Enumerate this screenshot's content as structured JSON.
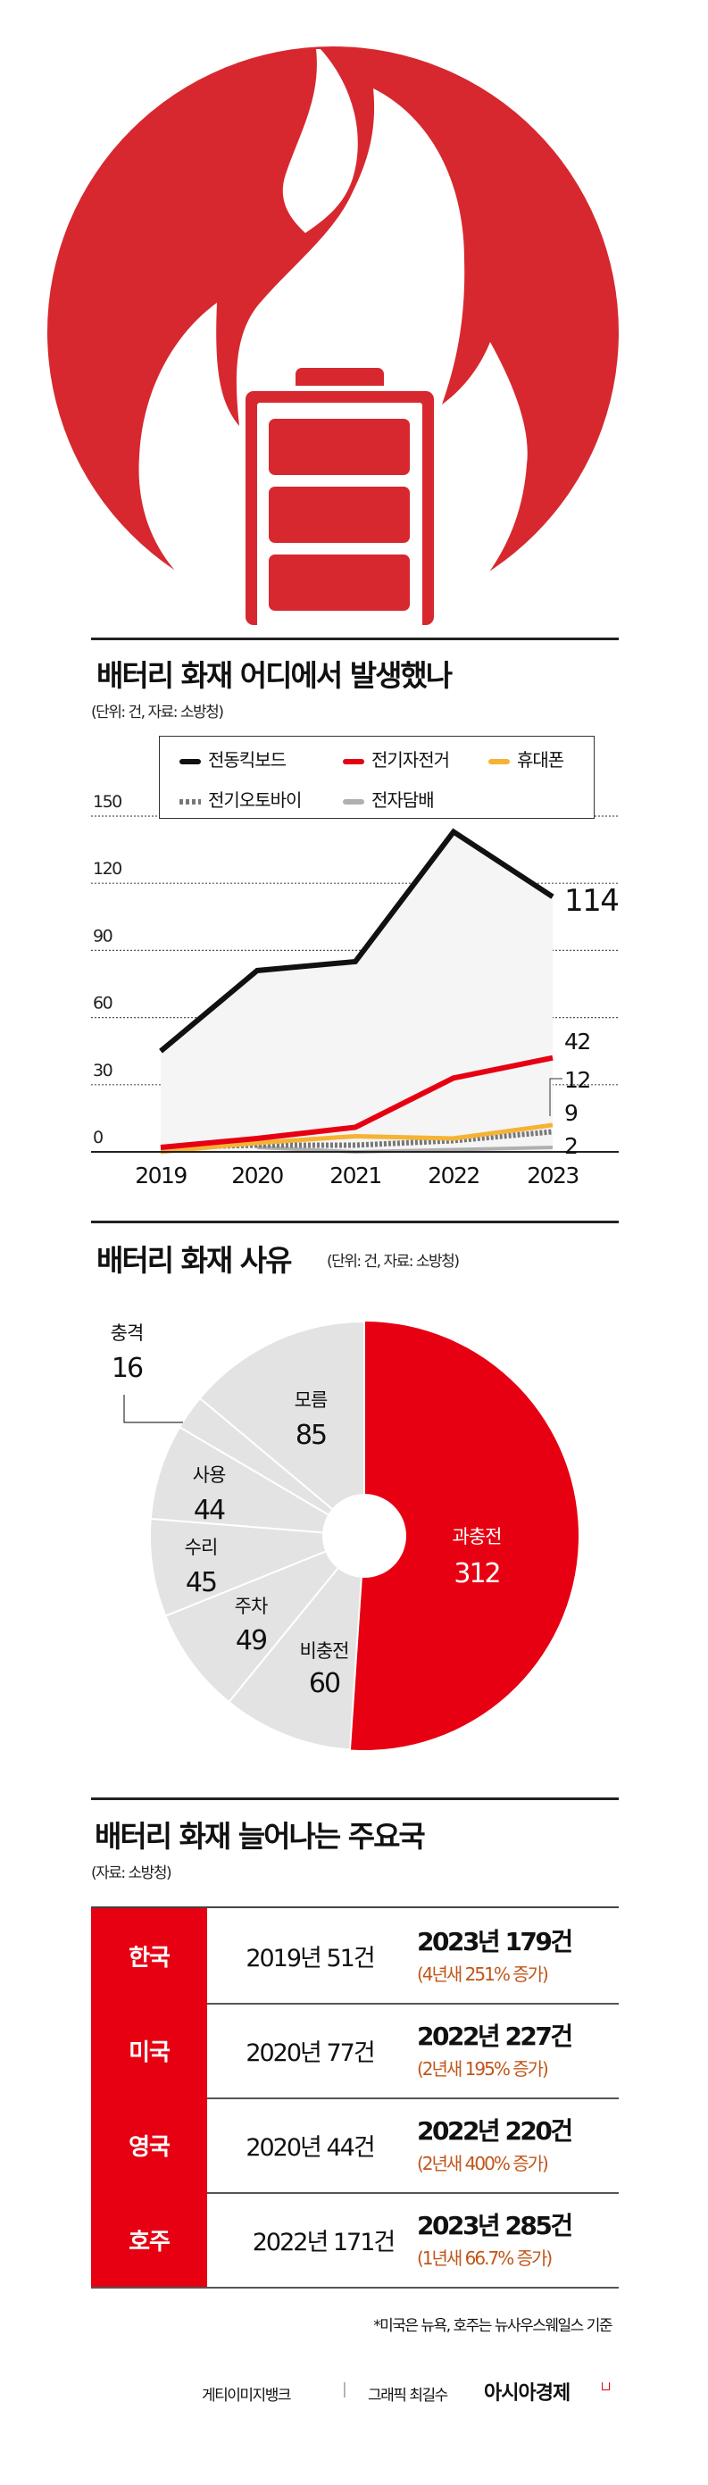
{
  "colors": {
    "red": "#d7282f",
    "accent": "#e60012",
    "orange": "#c0561a",
    "black": "#111111",
    "yellow": "#f5b335",
    "gray_dots": "#777777",
    "gray": "#b0b0b0",
    "area": "#f5f5f5"
  },
  "hero": {
    "icon": "battery-fire-icon"
  },
  "line_section": {
    "title": "배터리 화재 어디에서 발생했나",
    "subtitle": "(단위: 건, 자료: 소방청)"
  },
  "chart_data": [
    {
      "type": "line",
      "title": "배터리 화재 어디에서 발생했나",
      "x": [
        "2019",
        "2020",
        "2021",
        "2022",
        "2023"
      ],
      "ylim": [
        0,
        150
      ],
      "yticks": [
        "0",
        "30",
        "60",
        "90",
        "120",
        "150"
      ],
      "grid": true,
      "legend": "top",
      "series": [
        {
          "name": "전동킥보드",
          "values": [
            45,
            81,
            85,
            143,
            114
          ],
          "color": "#111111",
          "style": "solid",
          "area": true,
          "end_label": "114"
        },
        {
          "name": "전기자전거",
          "values": [
            2,
            6,
            11,
            33,
            42
          ],
          "color": "#e60012",
          "style": "solid",
          "end_label": "42"
        },
        {
          "name": "휴대폰",
          "values": [
            0,
            4,
            7,
            6,
            12
          ],
          "color": "#f5b335",
          "style": "solid",
          "end_label": "12"
        },
        {
          "name": "전기오토바이",
          "values": [
            2,
            3,
            3,
            5,
            9
          ],
          "color": "#777777",
          "style": "dotted",
          "end_label": "9"
        },
        {
          "name": "전자담배",
          "values": [
            null,
            2,
            0,
            1,
            2
          ],
          "color": "#b0b0b0",
          "style": "solid",
          "end_label": "2"
        }
      ]
    },
    {
      "type": "pie",
      "title": "배터리 화재 사유",
      "slices": [
        {
          "label": "과충전",
          "value": 312,
          "color": "#e60012"
        },
        {
          "label": "비충전",
          "value": 60,
          "color": "#e3e3e3"
        },
        {
          "label": "주차",
          "value": 49,
          "color": "#e3e3e3"
        },
        {
          "label": "수리",
          "value": 45,
          "color": "#e3e3e3"
        },
        {
          "label": "사용",
          "value": 44,
          "color": "#e3e3e3"
        },
        {
          "label": "충격",
          "value": 16,
          "color": "#e3e3e3"
        },
        {
          "label": "모름",
          "value": 85,
          "color": "#e3e3e3"
        }
      ]
    },
    {
      "type": "table",
      "title": "배터리 화재 늘어나는 주요국",
      "rows": [
        {
          "country": "한국",
          "from": "2019년 51건",
          "to": "2023년 179건",
          "change": "(4년새 251% 증가)"
        },
        {
          "country": "미국",
          "from": "2020년 77건",
          "to": "2022년 227건",
          "change": "(2년새 195% 증가)"
        },
        {
          "country": "영국",
          "from": "2020년 44건",
          "to": "2022년 220건",
          "change": "(2년새 400% 증가)"
        },
        {
          "country": "호주",
          "from": "2022년 171건",
          "to": "2023년 285건",
          "change": "(1년새 66.7% 증가)"
        }
      ]
    }
  ],
  "pie_section": {
    "title": "배터리 화재 사유",
    "subtitle": "(단위: 건, 자료: 소방청)"
  },
  "table_section": {
    "title": "배터리 화재 늘어나는 주요국",
    "subtitle": "(자료: 소방청)",
    "footnote": "*미국은 뉴욕, 호주는 뉴사우스웨일스 기준"
  },
  "credits": {
    "photo": "게티이미지뱅크",
    "separator": "|",
    "graphic": "그래픽 최길수",
    "brand": "아시아경제"
  }
}
